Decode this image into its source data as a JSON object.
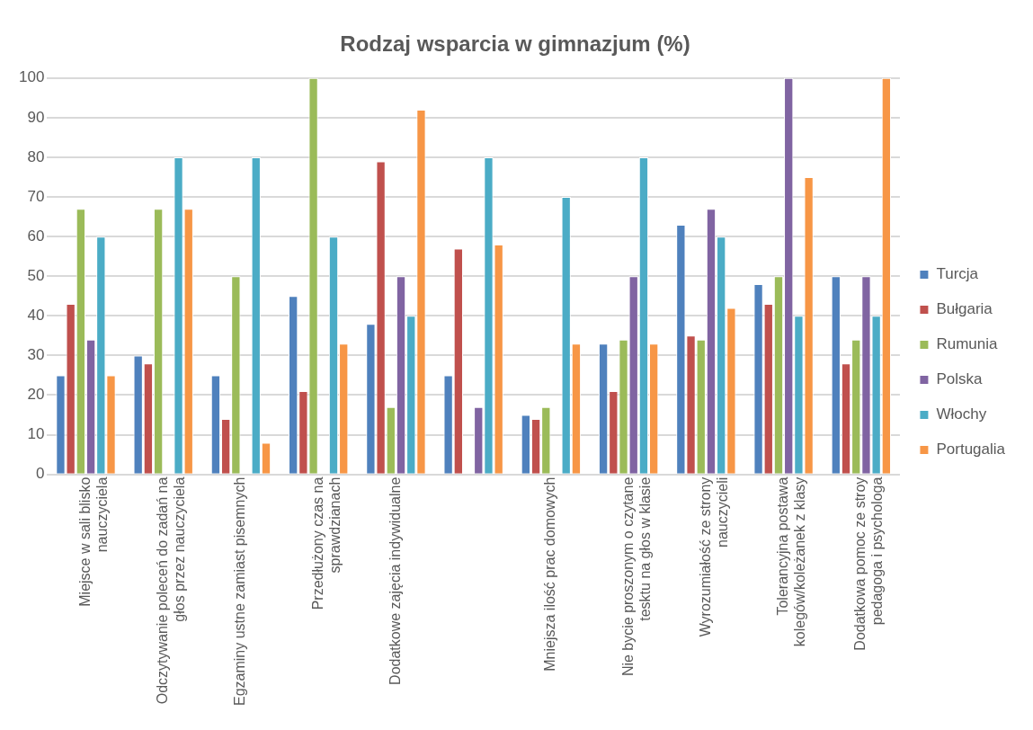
{
  "chart_data": {
    "type": "bar",
    "title": "Rodzaj wsparcia w gimnazjum (%)",
    "categories": [
      "Miejsce w sali blisko nauczyciela",
      "Odczytywanie poleceń do zadań na głos przez nauczyciela",
      "Egzaminy ustne zamiast pisemnych",
      "Przedłużony czas na sprawdzianach",
      "Dodatkowe zajęcia indywidualne",
      null,
      "Mniejsza ilość prac domowych",
      "Nie bycie proszonym o czytane tesktu na głos w klasie",
      "Wyrozumiałość ze strony nauczycieli",
      "Tolerancyjna postawa kolegów/koleżanek z klasy",
      "Dodatkowa pomoc ze stroy pedagoga i psychologa"
    ],
    "series": [
      {
        "name": "Turcja",
        "color": "#4f81bd",
        "values": [
          25,
          30,
          25,
          45,
          38,
          25,
          15,
          33,
          63,
          48,
          50
        ]
      },
      {
        "name": "Bułgaria",
        "color": "#c0504d",
        "values": [
          43,
          28,
          14,
          21,
          79,
          57,
          14,
          21,
          35,
          43,
          28
        ]
      },
      {
        "name": "Rumunia",
        "color": "#9bbb59",
        "values": [
          67,
          67,
          50,
          100,
          17,
          null,
          17,
          34,
          34,
          50,
          34
        ]
      },
      {
        "name": "Polska",
        "color": "#8064a2",
        "values": [
          34,
          null,
          null,
          null,
          50,
          17,
          null,
          50,
          67,
          100,
          50
        ]
      },
      {
        "name": "Włochy",
        "color": "#4bacc6",
        "values": [
          60,
          80,
          80,
          60,
          40,
          80,
          70,
          80,
          60,
          40,
          40
        ]
      },
      {
        "name": "Portugalia",
        "color": "#f79646",
        "values": [
          25,
          67,
          8,
          33,
          92,
          58,
          33,
          33,
          42,
          75,
          100
        ]
      }
    ],
    "ylim": [
      0,
      100
    ],
    "yticks": [
      0,
      10,
      20,
      30,
      40,
      50,
      60,
      70,
      80,
      90,
      100
    ],
    "grid": "y",
    "legend": "right"
  }
}
